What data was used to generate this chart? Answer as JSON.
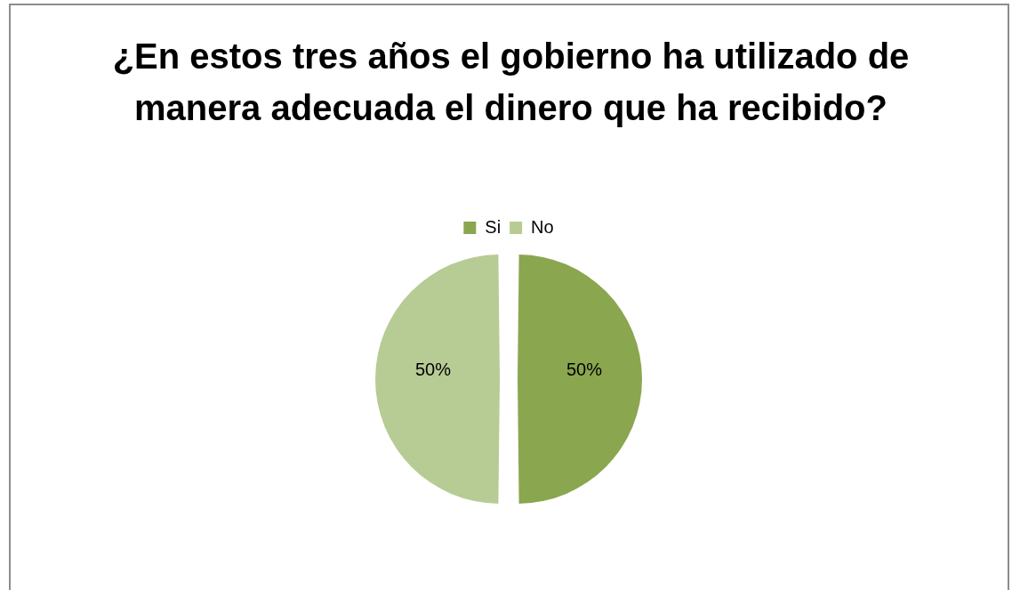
{
  "chart_data": {
    "type": "pie",
    "title": "¿En estos tres años el gobierno ha utilizado de manera adecuada el dinero que ha recibido?",
    "categories": [
      "Si",
      "No"
    ],
    "values": [
      50,
      50
    ],
    "colors": [
      "#8aa64f",
      "#b6cc94"
    ],
    "value_labels": [
      "50%",
      "50%"
    ],
    "legend": "top"
  }
}
